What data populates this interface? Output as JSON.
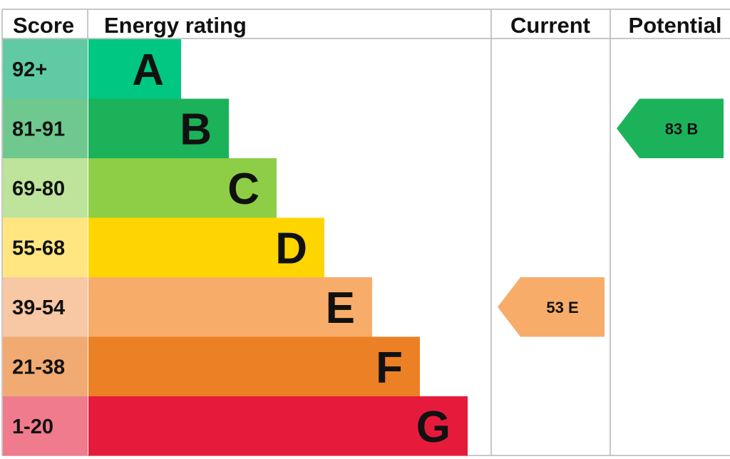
{
  "headers": {
    "score": "Score",
    "rating": "Energy rating",
    "current": "Current",
    "potential": "Potential"
  },
  "chart_data": {
    "type": "bar",
    "bands": [
      {
        "letter": "A",
        "range": "92+",
        "bar_color": "#00c781",
        "score_color": "#5fcaa3"
      },
      {
        "letter": "B",
        "range": "81-91",
        "bar_color": "#1cb25a",
        "score_color": "#6fc88d"
      },
      {
        "letter": "C",
        "range": "69-80",
        "bar_color": "#8dce46",
        "score_color": "#bde49a"
      },
      {
        "letter": "D",
        "range": "55-68",
        "bar_color": "#ffd500",
        "score_color": "#ffe680"
      },
      {
        "letter": "E",
        "range": "39-54",
        "bar_color": "#f7ac6a",
        "score_color": "#f8c7a3"
      },
      {
        "letter": "F",
        "range": "21-38",
        "bar_color": "#ec8024",
        "score_color": "#f0aa72"
      },
      {
        "letter": "G",
        "range": "1-20",
        "bar_color": "#e61b3c",
        "score_color": "#ef7b8d"
      }
    ],
    "current": {
      "score": 53,
      "band": "E",
      "label": "53  E",
      "color": "#f7ac6a"
    },
    "potential": {
      "score": 83,
      "band": "B",
      "label": "83  B",
      "color": "#1cb25a"
    }
  }
}
